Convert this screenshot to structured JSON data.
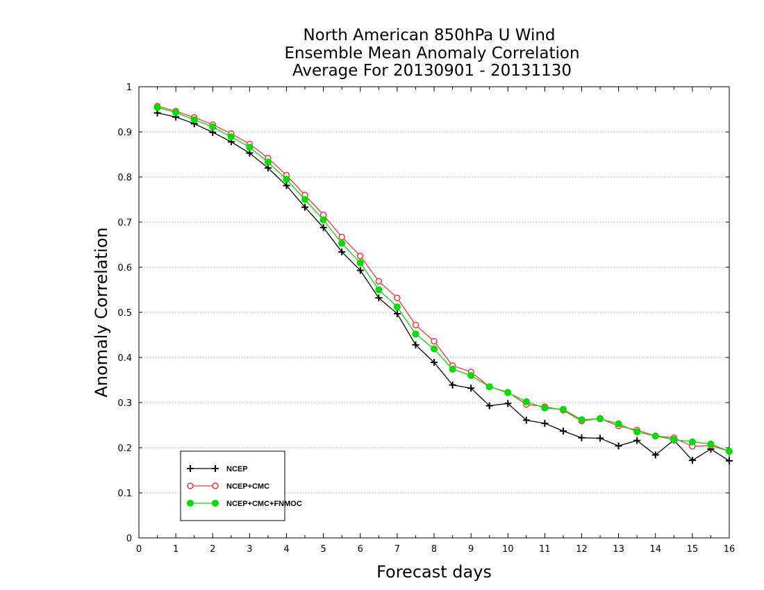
{
  "chart_data": {
    "type": "line",
    "title": [
      "North American 850hPa U Wind",
      "Ensemble Mean Anomaly Correlation",
      "Average For 20130901 - 20131130"
    ],
    "xlabel": "Forecast days",
    "ylabel": "Anomaly Correlation",
    "xlim": [
      0,
      16
    ],
    "ylim": [
      0,
      1
    ],
    "xticks": [
      "0",
      "1",
      "2",
      "3",
      "4",
      "5",
      "6",
      "7",
      "8",
      "9",
      "10",
      "11",
      "12",
      "13",
      "14",
      "15",
      "16"
    ],
    "yticks": [
      "0",
      "0.1",
      "0.2",
      "0.3",
      "0.4",
      "0.5",
      "0.6",
      "0.7",
      "0.8",
      "0.9",
      "1"
    ],
    "grid": "horizontal dotted",
    "legend_placement": "bottom-left",
    "x": [
      0.5,
      1,
      1.5,
      2,
      2.5,
      3,
      3.5,
      4,
      4.5,
      5,
      5.5,
      6,
      6.5,
      7,
      7.5,
      8,
      8.5,
      9,
      9.5,
      10,
      10.5,
      11,
      11.5,
      12,
      12.5,
      13,
      13.5,
      14,
      14.5,
      15,
      15.5,
      16
    ],
    "series": [
      {
        "name": "NCEP",
        "color": "#000000",
        "marker": "plus",
        "values": [
          0.942,
          0.933,
          0.918,
          0.899,
          0.878,
          0.853,
          0.82,
          0.781,
          0.733,
          0.688,
          0.634,
          0.593,
          0.532,
          0.497,
          0.428,
          0.389,
          0.339,
          0.332,
          0.293,
          0.298,
          0.261,
          0.254,
          0.237,
          0.222,
          0.221,
          0.204,
          0.216,
          0.184,
          0.217,
          0.172,
          0.197,
          0.171
        ]
      },
      {
        "name": "NCEP+CMC",
        "color": "#ff3333",
        "marker": "open-circle",
        "values": [
          0.957,
          0.946,
          0.932,
          0.916,
          0.896,
          0.873,
          0.842,
          0.804,
          0.76,
          0.716,
          0.667,
          0.625,
          0.569,
          0.532,
          0.472,
          0.436,
          0.382,
          0.368,
          0.335,
          0.323,
          0.296,
          0.291,
          0.283,
          0.259,
          0.265,
          0.248,
          0.239,
          0.226,
          0.222,
          0.203,
          0.205,
          0.192
        ]
      },
      {
        "name": "NCEP+CMC+FNMOC",
        "color": "#00dd00",
        "marker": "filled-circle",
        "values": [
          0.954,
          0.943,
          0.927,
          0.911,
          0.889,
          0.866,
          0.833,
          0.795,
          0.75,
          0.705,
          0.653,
          0.61,
          0.55,
          0.512,
          0.452,
          0.419,
          0.374,
          0.36,
          0.335,
          0.322,
          0.302,
          0.288,
          0.285,
          0.262,
          0.264,
          0.253,
          0.235,
          0.226,
          0.218,
          0.213,
          0.208,
          0.192
        ]
      }
    ]
  }
}
